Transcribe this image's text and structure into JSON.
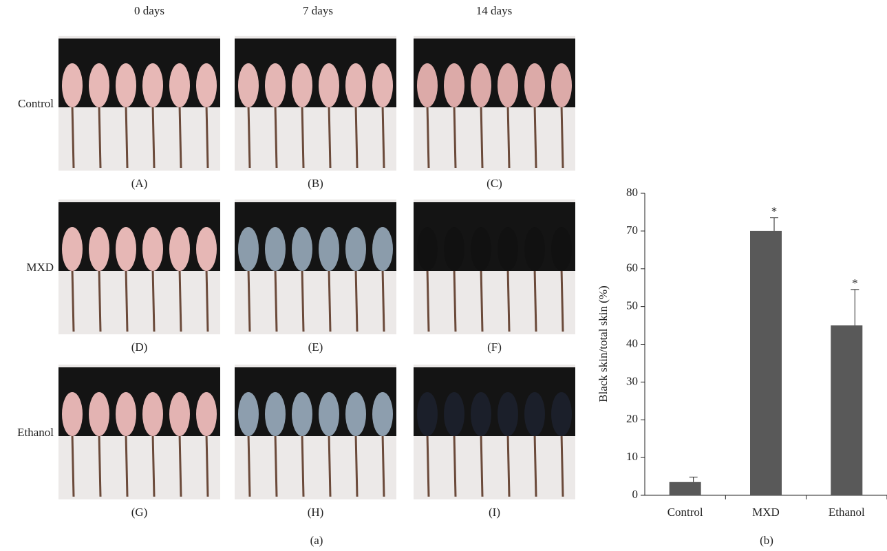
{
  "panel_a": {
    "columns": [
      "0 days",
      "7 days",
      "14 days"
    ],
    "rows": [
      "Control",
      "MXD",
      "Ethanol"
    ],
    "panels": [
      "(A)",
      "(B)",
      "(C)",
      "(D)",
      "(E)",
      "(F)",
      "(G)",
      "(H)",
      "(I)"
    ],
    "caption": "(a)"
  },
  "chart_data": {
    "type": "bar",
    "caption": "(b)",
    "ylabel": "Black skin/total skin (%)",
    "categories": [
      "Control",
      "MXD",
      "Ethanol"
    ],
    "values": [
      3.5,
      70,
      45
    ],
    "errors": [
      1.3,
      3.5,
      9.5
    ],
    "significance": [
      null,
      "*",
      "*"
    ],
    "color": "#595959",
    "ylim": [
      0,
      80
    ],
    "yticks": [
      0,
      10,
      20,
      30,
      40,
      50,
      60,
      70,
      80
    ]
  }
}
